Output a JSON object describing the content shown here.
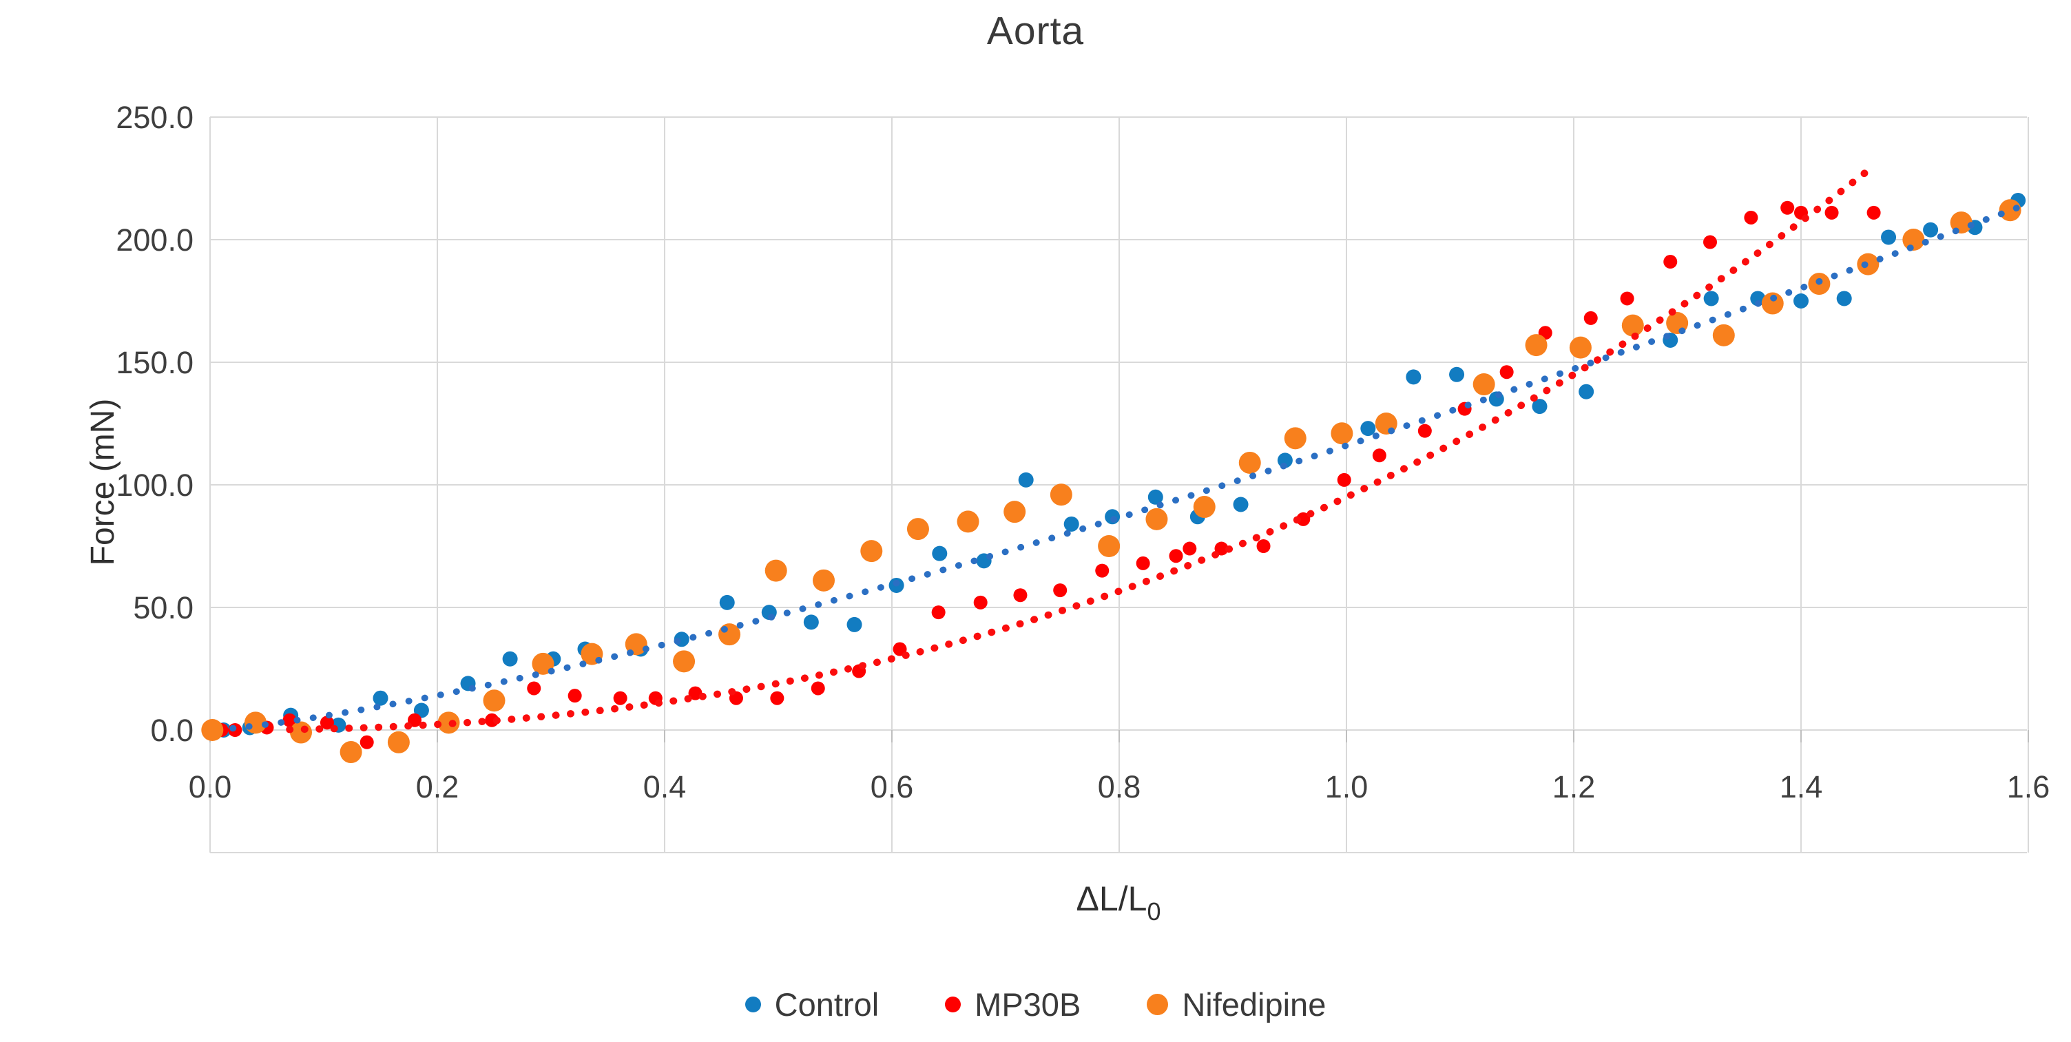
{
  "title": "Aorta",
  "chart_data": {
    "type": "scatter",
    "title": "Aorta",
    "xlabel_main": "ΔL/L",
    "xlabel_sub": "0",
    "ylabel": "Force (mN)",
    "x_ticks": [
      "0.0",
      "0.2",
      "0.4",
      "0.6",
      "0.8",
      "1.0",
      "1.2",
      "1.4",
      "1.6"
    ],
    "y_ticks": [
      "0.0",
      "50.0",
      "100.0",
      "150.0",
      "200.0",
      "250.0"
    ],
    "xlim": [
      0,
      1.6
    ],
    "ylim": [
      -50,
      250
    ],
    "grid": true,
    "legend_position": "bottom",
    "grid_color": "#D9D9D9",
    "axis_color": "#BFBFBF",
    "tick_label_color": "#3f3f3f",
    "series": [
      {
        "name": "Control",
        "color": "#127CC1",
        "marker_radius": 11,
        "points": [
          [
            0.012,
            0
          ],
          [
            0.035,
            1
          ],
          [
            0.071,
            6
          ],
          [
            0.113,
            2
          ],
          [
            0.15,
            13
          ],
          [
            0.186,
            8
          ],
          [
            0.227,
            19
          ],
          [
            0.264,
            29
          ],
          [
            0.302,
            29
          ],
          [
            0.33,
            33
          ],
          [
            0.379,
            33
          ],
          [
            0.415,
            37
          ],
          [
            0.455,
            52
          ],
          [
            0.492,
            48
          ],
          [
            0.529,
            44
          ],
          [
            0.567,
            43
          ],
          [
            0.604,
            59
          ],
          [
            0.642,
            72
          ],
          [
            0.681,
            69
          ],
          [
            0.718,
            102
          ],
          [
            0.758,
            84
          ],
          [
            0.794,
            87
          ],
          [
            0.832,
            95
          ],
          [
            0.869,
            87
          ],
          [
            0.907,
            92
          ],
          [
            0.946,
            110
          ],
          [
            1.019,
            123
          ],
          [
            1.059,
            144
          ],
          [
            1.097,
            145
          ],
          [
            1.132,
            135
          ],
          [
            1.17,
            132
          ],
          [
            1.211,
            138
          ],
          [
            1.285,
            159
          ],
          [
            1.321,
            176
          ],
          [
            1.362,
            176
          ],
          [
            1.4,
            175
          ],
          [
            1.438,
            176
          ],
          [
            1.477,
            201
          ],
          [
            1.514,
            204
          ],
          [
            1.553,
            205
          ],
          [
            1.591,
            216
          ]
        ]
      },
      {
        "name": "MP30B",
        "color": "#FE0000",
        "marker_radius": 10,
        "points": [
          [
            0.01,
            0
          ],
          [
            0.022,
            0
          ],
          [
            0.05,
            1
          ],
          [
            0.07,
            4
          ],
          [
            0.103,
            3
          ],
          [
            0.138,
            -5
          ],
          [
            0.18,
            4
          ],
          [
            0.21,
            2
          ],
          [
            0.248,
            4
          ],
          [
            0.285,
            17
          ],
          [
            0.321,
            14
          ],
          [
            0.361,
            13
          ],
          [
            0.392,
            13
          ],
          [
            0.427,
            15
          ],
          [
            0.463,
            13
          ],
          [
            0.499,
            13
          ],
          [
            0.535,
            17
          ],
          [
            0.571,
            24
          ],
          [
            0.607,
            33
          ],
          [
            0.641,
            48
          ],
          [
            0.678,
            52
          ],
          [
            0.713,
            55
          ],
          [
            0.748,
            57
          ],
          [
            0.785,
            65
          ],
          [
            0.821,
            68
          ],
          [
            0.85,
            71
          ],
          [
            0.862,
            74
          ],
          [
            0.89,
            74
          ],
          [
            0.927,
            75
          ],
          [
            0.962,
            86
          ],
          [
            0.998,
            102
          ],
          [
            1.029,
            112
          ],
          [
            1.069,
            122
          ],
          [
            1.104,
            131
          ],
          [
            1.141,
            146
          ],
          [
            1.175,
            162
          ],
          [
            1.215,
            168
          ],
          [
            1.247,
            176
          ],
          [
            1.285,
            191
          ],
          [
            1.32,
            199
          ],
          [
            1.356,
            209
          ],
          [
            1.388,
            213
          ],
          [
            1.4,
            211
          ],
          [
            1.427,
            211
          ],
          [
            1.464,
            211
          ]
        ]
      },
      {
        "name": "Nifedipine",
        "color": "#F8801D",
        "marker_radius": 16,
        "points": [
          [
            0.002,
            0
          ],
          [
            0.04,
            3
          ],
          [
            0.08,
            -1
          ],
          [
            0.124,
            -9
          ],
          [
            0.166,
            -5
          ],
          [
            0.21,
            3
          ],
          [
            0.25,
            12
          ],
          [
            0.293,
            27
          ],
          [
            0.336,
            31
          ],
          [
            0.375,
            35
          ],
          [
            0.417,
            28
          ],
          [
            0.457,
            39
          ],
          [
            0.498,
            65
          ],
          [
            0.54,
            61
          ],
          [
            0.582,
            73
          ],
          [
            0.623,
            82
          ],
          [
            0.667,
            85
          ],
          [
            0.708,
            89
          ],
          [
            0.749,
            96
          ],
          [
            0.791,
            75
          ],
          [
            0.833,
            86
          ],
          [
            0.875,
            91
          ],
          [
            0.915,
            109
          ],
          [
            0.955,
            119
          ],
          [
            0.996,
            121
          ],
          [
            1.035,
            125
          ],
          [
            1.121,
            141
          ],
          [
            1.167,
            157
          ],
          [
            1.206,
            156
          ],
          [
            1.252,
            165
          ],
          [
            1.291,
            166
          ],
          [
            1.332,
            161
          ],
          [
            1.375,
            174
          ],
          [
            1.416,
            182
          ],
          [
            1.459,
            190
          ],
          [
            1.499,
            200
          ],
          [
            1.541,
            207
          ],
          [
            1.584,
            212
          ]
        ]
      }
    ],
    "trendlines": [
      {
        "series": "Control",
        "type": "power",
        "a": 116,
        "b": 1.31,
        "x_min": 0.02,
        "x_max": 1.6,
        "color": "#2B6FC3",
        "stroke_width": 9.5,
        "dot_gap": 23
      },
      {
        "series": "MP30B",
        "type": "power",
        "a": 95,
        "b": 2.32,
        "x_min": 0.07,
        "x_max": 1.46,
        "color": "#FB0D0D",
        "stroke_width": 10.5,
        "dot_gap": 21
      }
    ]
  }
}
